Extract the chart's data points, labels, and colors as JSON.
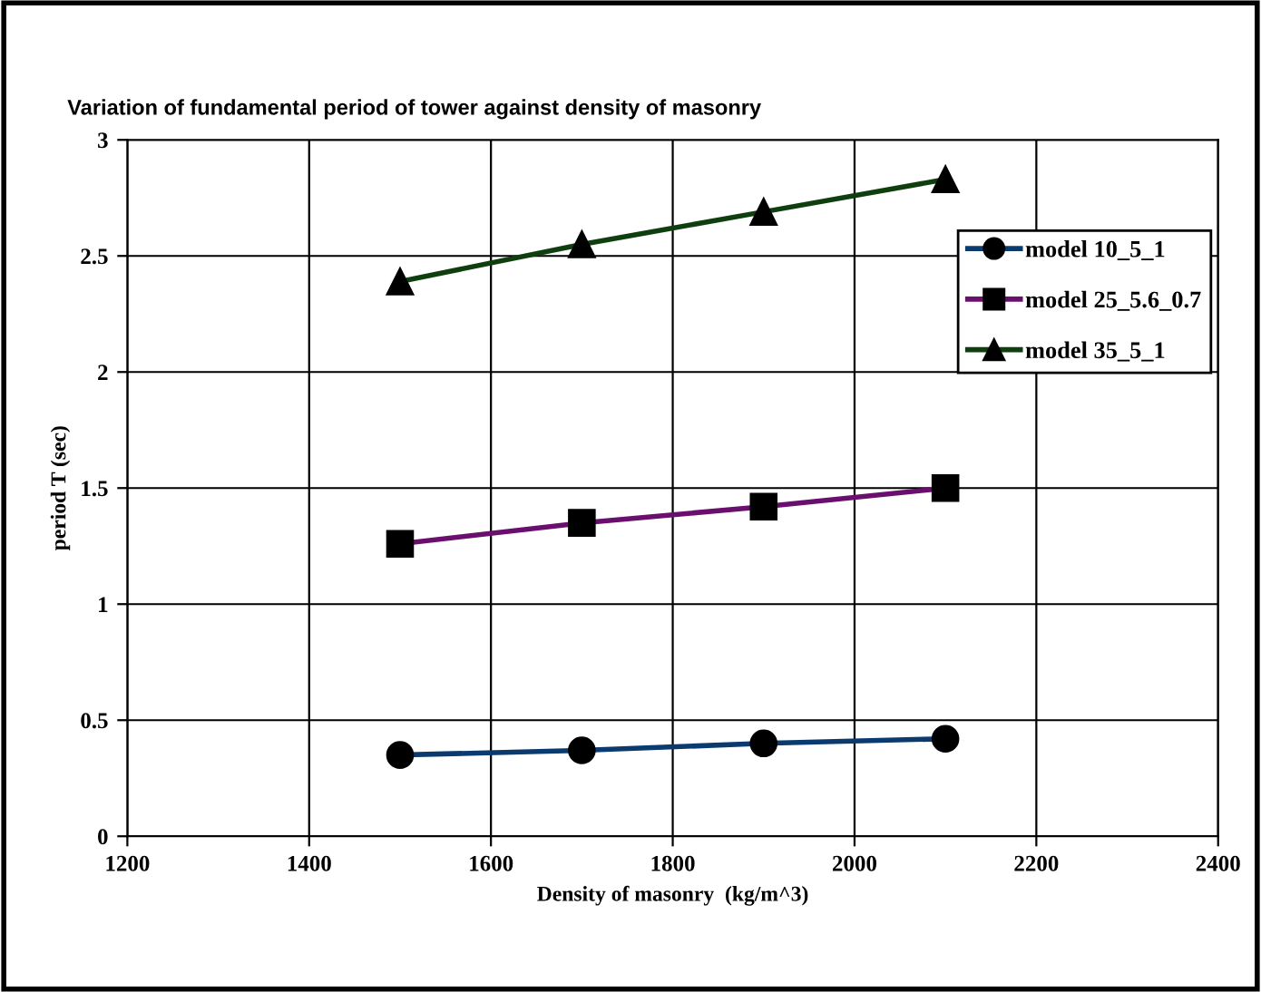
{
  "chart_data": {
    "type": "line",
    "title": "Variation of fundamental period of tower against density of masonry",
    "xlabel": "Density of masonry  (kg/m^3)",
    "ylabel": "period T (sec)",
    "x": [
      1500,
      1700,
      1900,
      2100
    ],
    "series": [
      {
        "name": "model 10_5_1",
        "color": "#0b3a6e",
        "marker": "circle",
        "values": [
          0.35,
          0.37,
          0.4,
          0.42
        ]
      },
      {
        "name": "model 25_5.6_0.7",
        "color": "#6a0f6e",
        "marker": "square",
        "values": [
          1.26,
          1.35,
          1.42,
          1.5
        ]
      },
      {
        "name": "model 35_5_1",
        "color": "#0f3f0f",
        "marker": "triangle",
        "values": [
          2.39,
          2.55,
          2.69,
          2.83
        ]
      }
    ],
    "xlim": [
      1200,
      2400
    ],
    "xticks": [
      1200,
      1400,
      1600,
      1800,
      2000,
      2200,
      2400
    ],
    "ylim": [
      0,
      3
    ],
    "yticks": [
      0,
      0.5,
      1,
      1.5,
      2,
      2.5,
      3
    ],
    "grid": true,
    "legend": "top right",
    "line_style": "solid"
  }
}
